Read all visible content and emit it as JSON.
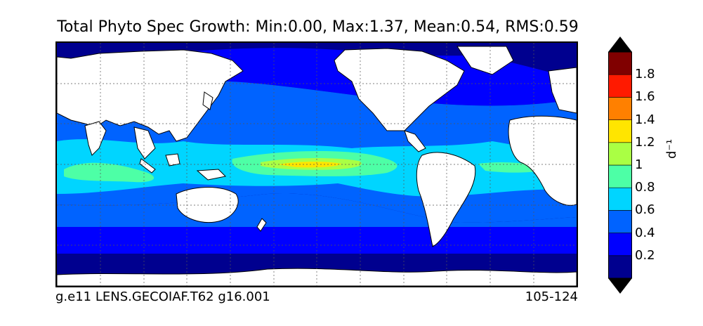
{
  "title": "Total Phyto Spec Growth: Min:0.00, Max:1.37, Mean:0.54, RMS:0.59",
  "footer": {
    "left": "g.e11 LENS.GECOIAF.T62 g16.001",
    "right": "105-124"
  },
  "colorbar": {
    "unit": "d⁻¹",
    "ticks": [
      "0.2",
      "0.4",
      "0.6",
      "0.8",
      "1",
      "1.2",
      "1.4",
      "1.6",
      "1.8"
    ],
    "levels": [
      {
        "min": 0.0,
        "max": 0.2,
        "color": "#00008f"
      },
      {
        "min": 0.2,
        "max": 0.4,
        "color": "#0000ff"
      },
      {
        "min": 0.4,
        "max": 0.6,
        "color": "#0063ff"
      },
      {
        "min": 0.6,
        "max": 0.8,
        "color": "#00d5ff"
      },
      {
        "min": 0.8,
        "max": 1.0,
        "color": "#4dffa6"
      },
      {
        "min": 1.0,
        "max": 1.2,
        "color": "#aaff44"
      },
      {
        "min": 1.2,
        "max": 1.4,
        "color": "#ffe500"
      },
      {
        "min": 1.4,
        "max": 1.6,
        "color": "#ff8000"
      },
      {
        "min": 1.6,
        "max": 1.8,
        "color": "#ff1a00"
      },
      {
        "min": 1.8,
        "max": 2.0,
        "color": "#800000"
      }
    ],
    "under_color": "#000000",
    "over_color": "#000000"
  },
  "map": {
    "projection": "cylindrical",
    "grid": true,
    "land_color": "#ffffff",
    "coastline_color": "#000000"
  }
}
